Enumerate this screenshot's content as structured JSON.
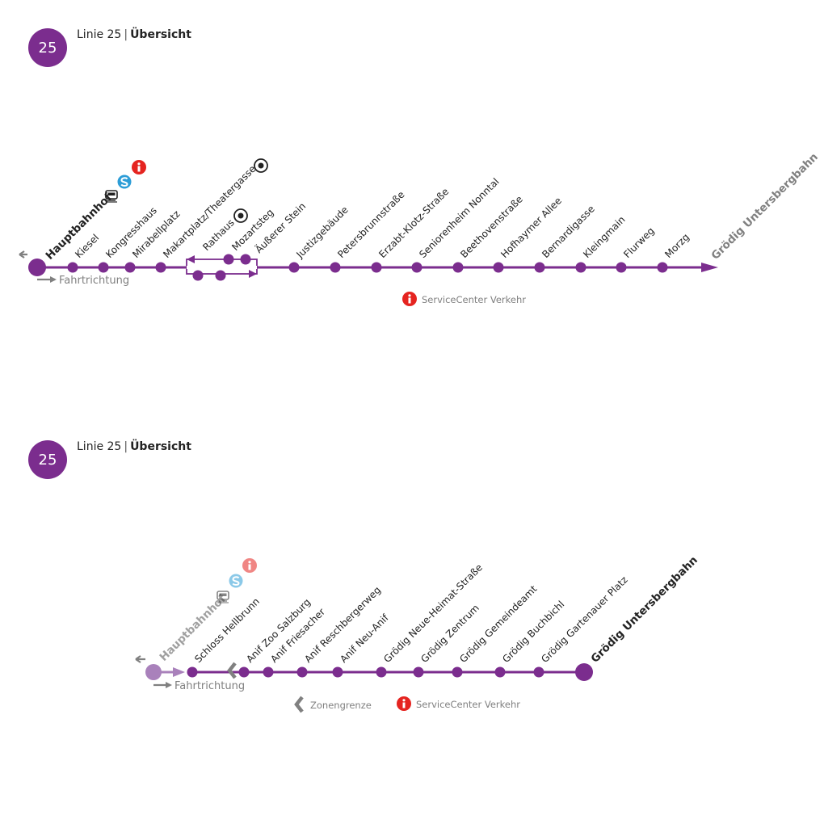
{
  "colors": {
    "line": "#7b2d8e",
    "line_light": "#a981bb",
    "grey": "#808080",
    "red": "#e52420",
    "blue": "#2d9dd7"
  },
  "header1": {
    "badge": "25",
    "line_label": "Linie 25",
    "separator": "|",
    "title": "Übersicht"
  },
  "header2": {
    "badge": "25",
    "line_label": "Linie 25",
    "separator": "|",
    "title": "Übersicht"
  },
  "map1": {
    "start": "Hauptbahnhof",
    "end": "Grödig Untersbergbahn",
    "direction": "Fahrtrichtung",
    "stops": [
      "Kiesel",
      "Kongresshaus",
      "Mirabellplatz",
      "Makartplatz/Theatergasse",
      "Rathaus",
      "Mozartsteg",
      "Äußerer Stein",
      "Justizgebäude",
      "Petersbrunnstraße",
      "Erzabt-Klotz-Straße",
      "Seniorenheim Nonntal",
      "Beethovenstraße",
      "Hofhaymer Allee",
      "Bernardigasse",
      "Kleingmain",
      "Flurweg",
      "Morzg"
    ],
    "legend_service": "ServiceCenter Verkehr"
  },
  "map2": {
    "start": "Hauptbahnhof",
    "end": "Grödig Untersbergbahn",
    "direction": "Fahrtrichtung",
    "stops": [
      "Schloss Hellbrunn",
      "Anif Zoo Salzburg",
      "Anif Friesacher",
      "Anif Reschbergerweg",
      "Anif Neu-Anif",
      "Grödig Neue-Heimat-Straße",
      "Grödig Zentrum",
      "Grödig Gemeindeamt",
      "Grödig Buchbichl",
      "Grödig Gartenauer Platz"
    ],
    "legend_zone": "Zonengrenze",
    "legend_service": "ServiceCenter Verkehr"
  },
  "icons": [
    "train-icon",
    "s-bahn-icon",
    "info-icon",
    "sight-marker-icon",
    "zone-border-icon",
    "arrow-left-icon",
    "arrow-right-icon"
  ]
}
